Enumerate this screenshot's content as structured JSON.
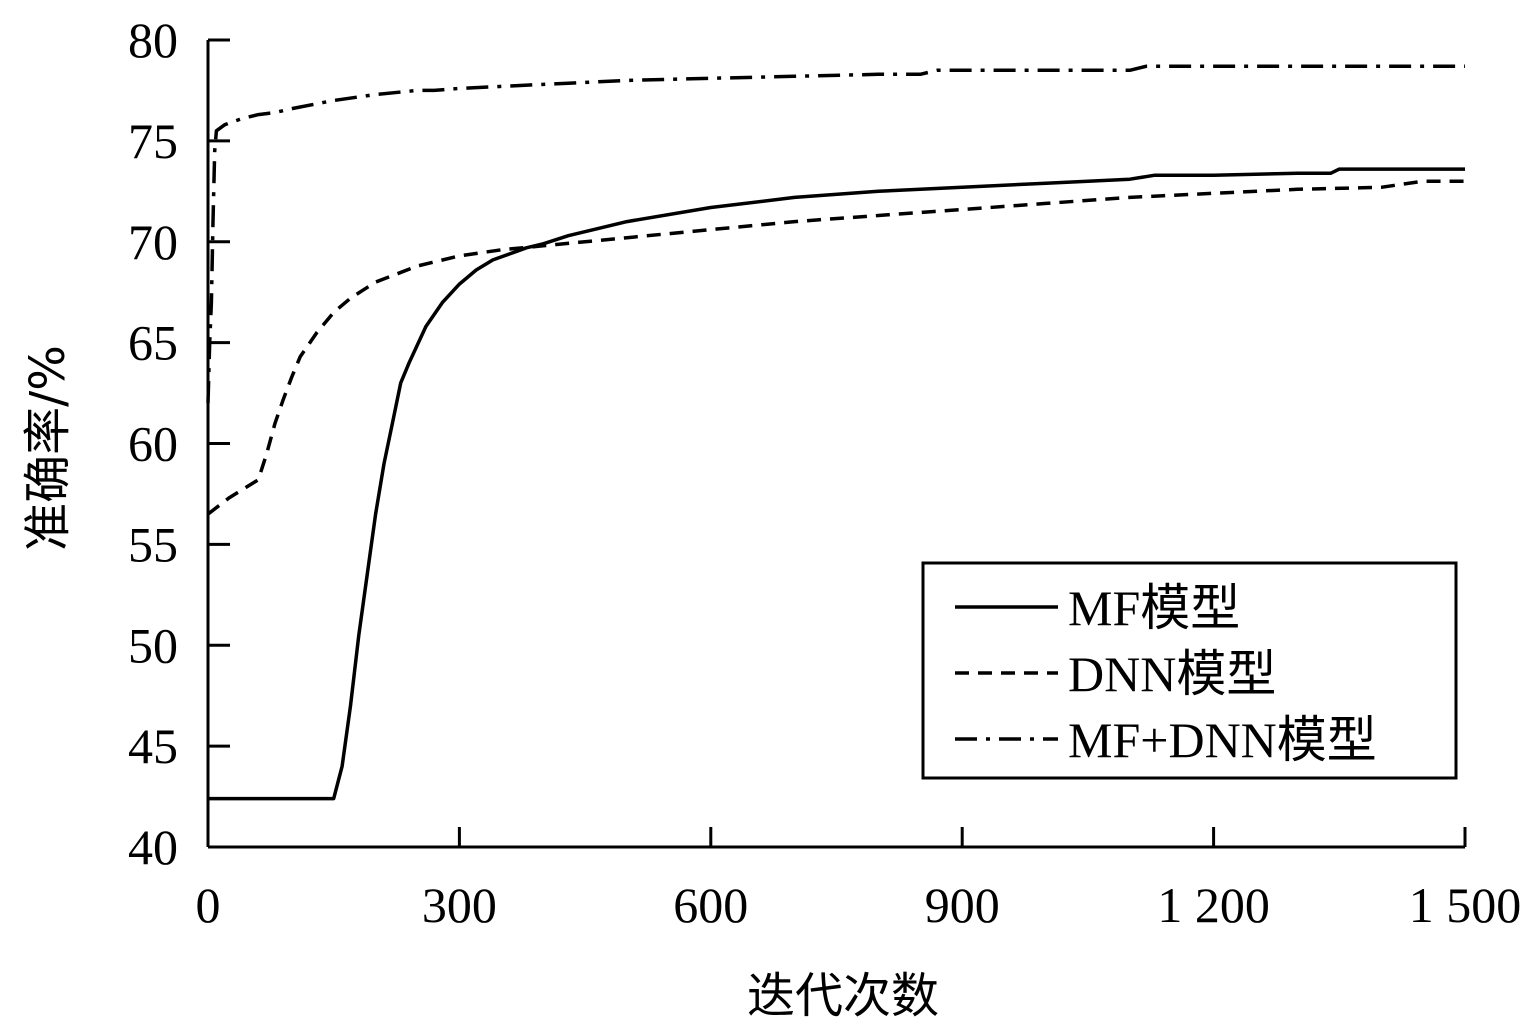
{
  "chart_data": {
    "type": "line",
    "xlabel": "迭代次数",
    "ylabel": "准确率/%",
    "xlim": [
      0,
      1500
    ],
    "ylim": [
      40,
      80
    ],
    "x_ticks": [
      0,
      300,
      600,
      900,
      1200,
      1500
    ],
    "x_tick_labels": [
      "0",
      "300",
      "600",
      "900",
      "1 200",
      "1 500"
    ],
    "y_ticks": [
      40,
      45,
      50,
      55,
      60,
      65,
      70,
      75,
      80
    ],
    "y_tick_labels": [
      "40",
      "45",
      "50",
      "55",
      "60",
      "65",
      "70",
      "75",
      "80"
    ],
    "grid": false,
    "legend_position": "bottom-right",
    "series": [
      {
        "name": "MF模型",
        "style": "solid",
        "color": "#000000",
        "x": [
          0,
          148,
          150,
          160,
          170,
          180,
          190,
          200,
          210,
          220,
          230,
          240,
          260,
          280,
          300,
          320,
          340,
          360,
          380,
          400,
          430,
          500,
          600,
          700,
          800,
          900,
          1000,
          1100,
          1130,
          1200,
          1300,
          1340,
          1350,
          1500
        ],
        "y": [
          42.4,
          42.4,
          42.4,
          44,
          47,
          50.5,
          53.5,
          56.5,
          59,
          61,
          63,
          64,
          65.8,
          67,
          67.9,
          68.6,
          69.1,
          69.4,
          69.7,
          69.9,
          70.3,
          71,
          71.7,
          72.2,
          72.5,
          72.7,
          72.9,
          73.1,
          73.3,
          73.3,
          73.4,
          73.4,
          73.6,
          73.6
        ]
      },
      {
        "name": "DNN模型",
        "style": "dashed",
        "color": "#000000",
        "x": [
          0,
          25,
          60,
          70,
          80,
          90,
          100,
          110,
          130,
          150,
          170,
          200,
          250,
          300,
          350,
          400,
          500,
          600,
          700,
          800,
          900,
          1000,
          1100,
          1200,
          1300,
          1400,
          1450,
          1500
        ],
        "y": [
          56.5,
          57.3,
          58.2,
          59.5,
          61,
          62.2,
          63.3,
          64.3,
          65.5,
          66.5,
          67.2,
          68,
          68.8,
          69.3,
          69.6,
          69.8,
          70.2,
          70.6,
          71,
          71.3,
          71.6,
          71.9,
          72.2,
          72.4,
          72.6,
          72.7,
          73,
          73
        ]
      },
      {
        "name": "MF+DNN模型",
        "style": "dashdot",
        "color": "#000000",
        "x": [
          0,
          2,
          4,
          6,
          8,
          10,
          20,
          40,
          60,
          80,
          100,
          150,
          200,
          250,
          270,
          300,
          350,
          400,
          450,
          500,
          600,
          700,
          800,
          850,
          870,
          900,
          1000,
          1100,
          1120,
          1200,
          1300,
          1400,
          1500
        ],
        "y": [
          62,
          65,
          67,
          71,
          74.5,
          75.5,
          75.8,
          76.1,
          76.3,
          76.4,
          76.6,
          77,
          77.3,
          77.5,
          77.5,
          77.6,
          77.7,
          77.8,
          77.9,
          78,
          78.1,
          78.2,
          78.3,
          78.3,
          78.5,
          78.5,
          78.5,
          78.5,
          78.7,
          78.7,
          78.7,
          78.7,
          78.7
        ]
      }
    ]
  }
}
